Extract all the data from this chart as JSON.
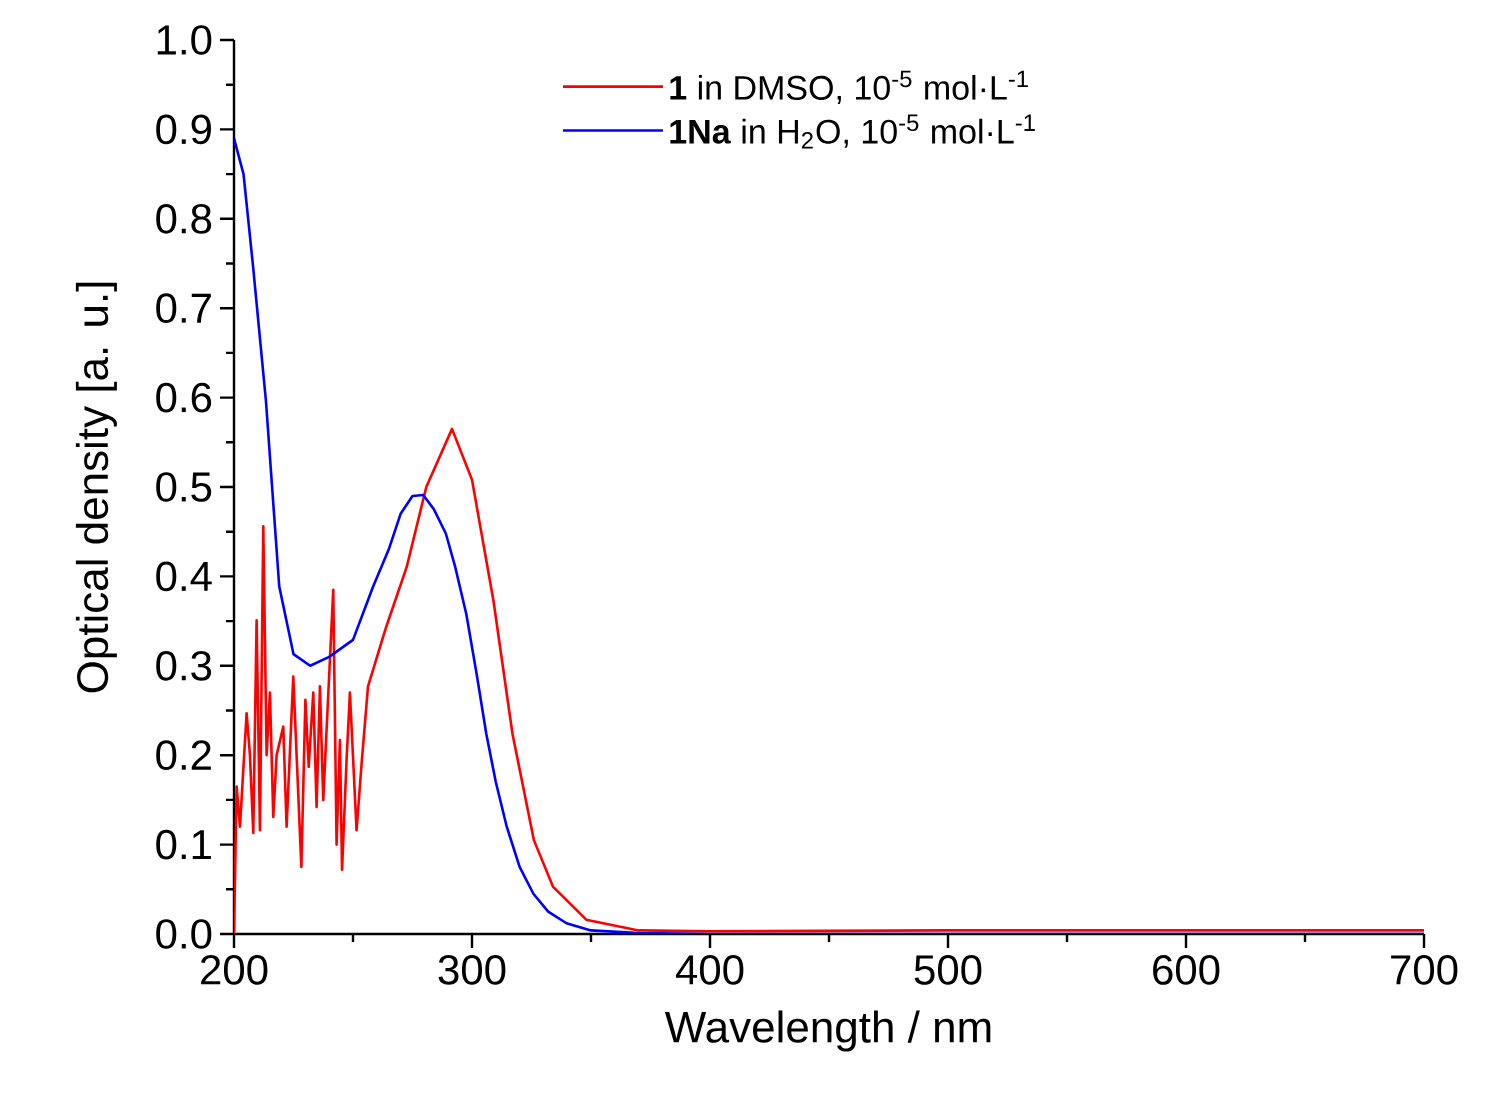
{
  "chart_data": {
    "type": "line",
    "xlabel": "Wavelength / nm",
    "ylabel": "Optical density [a. u.]",
    "xlim": [
      200,
      700
    ],
    "xticks": [
      200,
      300,
      400,
      500,
      600,
      700
    ],
    "ylim": [
      0,
      1.0
    ],
    "yticks": [
      {
        "value": 0,
        "label": "0.0"
      },
      {
        "value": 0.1,
        "label": "0.1"
      },
      {
        "value": 0.2,
        "label": "0.2"
      },
      {
        "value": 0.3,
        "label": "0.3"
      },
      {
        "value": 0.4,
        "label": "0.4"
      },
      {
        "value": 0.5,
        "label": "0.5"
      },
      {
        "value": 0.6,
        "label": "0.6"
      },
      {
        "value": 0.7,
        "label": "0.7"
      },
      {
        "value": 0.8,
        "label": "0.8"
      },
      {
        "value": 0.9,
        "label": "0.9"
      },
      {
        "value": 1.0,
        "label": "1.0"
      }
    ],
    "legend": "top",
    "grid": false,
    "marker": "none",
    "line_style": "solid",
    "series": [
      {
        "name": "**1** in DMSO, 10$^{-5}$ mol·L$^{-1}$",
        "color": "#ff0000",
        "x": [
          200,
          201.1,
          202.5,
          205.3,
          206.7,
          208.1,
          209.5,
          210.9,
          212.3,
          213.7,
          215.1,
          216.5,
          217.9,
          220.7,
          222.1,
          224.9,
          228.3,
          230,
          231.4,
          233.3,
          234.7,
          236.1,
          237.5,
          241.7,
          243.1,
          244.5,
          245.4,
          247.3,
          248.7,
          251.5,
          253.5,
          256.3,
          264,
          272.5,
          280.8,
          291.6,
          300,
          309,
          317,
          326,
          334,
          348,
          370,
          400,
          500,
          600,
          700
        ],
        "values": [
          0,
          0.165,
          0.12,
          0.247,
          0.2,
          0.113,
          0.351,
          0.116,
          0.456,
          0.2,
          0.27,
          0.131,
          0.2,
          0.232,
          0.12,
          0.288,
          0.075,
          0.262,
          0.187,
          0.27,
          0.142,
          0.277,
          0.15,
          0.385,
          0.1,
          0.217,
          0.072,
          0.195,
          0.27,
          0.116,
          0.187,
          0.277,
          0.344,
          0.41,
          0.5,
          0.565,
          0.508,
          0.373,
          0.224,
          0.105,
          0.053,
          0.016,
          0.004,
          0.003,
          0.004,
          0.004,
          0.004
        ]
      },
      {
        "name": "**1Na** in H$_{2}$O, 10$^{-5}$ mol·L$^{-1}$",
        "color": "#0000ff",
        "x": [
          200,
          204,
          208,
          213.4,
          219,
          225,
          232,
          240,
          250,
          258.5,
          265,
          270,
          275,
          279.5,
          284,
          289,
          293,
          297.6,
          302,
          306,
          310,
          314.6,
          320,
          325.8,
          332,
          339.7,
          350,
          370,
          400,
          500,
          600,
          700
        ],
        "values": [
          0.89,
          0.85,
          0.747,
          0.597,
          0.389,
          0.313,
          0.3,
          0.31,
          0.329,
          0.389,
          0.43,
          0.47,
          0.49,
          0.491,
          0.475,
          0.448,
          0.41,
          0.358,
          0.29,
          0.224,
          0.17,
          0.12,
          0.075,
          0.045,
          0.025,
          0.012,
          0.004,
          0.001,
          0,
          0,
          0,
          0
        ]
      }
    ]
  }
}
